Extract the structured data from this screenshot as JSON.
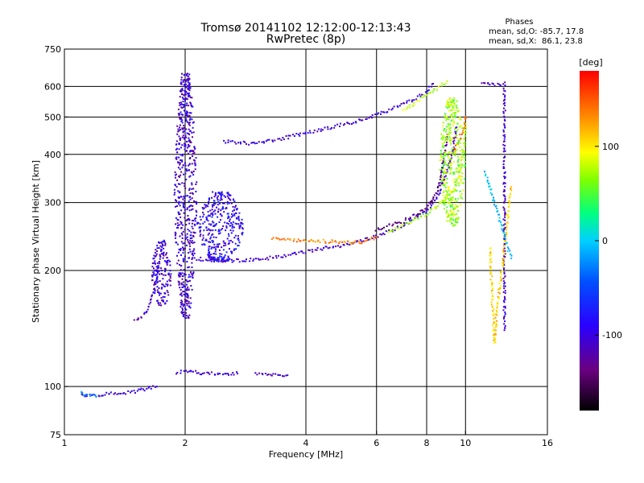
{
  "chart_data": {
    "type": "scatter",
    "title": "Tromsø 20141102 12:12:00-12:13:43",
    "subtitle": "RwPretec (8p)",
    "xlabel": "Frequency [MHz]",
    "ylabel": "Stationary phase Virtual Height [km]",
    "x_scale": "log",
    "y_scale": "log",
    "xlim": [
      1,
      16
    ],
    "ylim": [
      75,
      750
    ],
    "x_ticks": [
      1,
      2,
      4,
      6,
      8,
      10,
      16
    ],
    "y_ticks": [
      75,
      100,
      200,
      300,
      400,
      500,
      600,
      750
    ],
    "x_grid": [
      2,
      4,
      6,
      8,
      10
    ],
    "y_grid": [
      100,
      200,
      300,
      400,
      500,
      600
    ],
    "grid": true,
    "stats": {
      "heading": "Phases",
      "line1": "mean, sd,O: -85.7, 17.8",
      "line2": "mean, sd,X:  86.1, 23.8"
    },
    "colorbar": {
      "label": "[deg]",
      "range": [
        -180,
        180
      ],
      "ticks": [
        100,
        0,
        -100
      ]
    },
    "traces": [
      {
        "points": [
          [
            1.1,
            95
          ],
          [
            1.2,
            95
          ],
          [
            1.35,
            96
          ],
          [
            1.5,
            97
          ],
          [
            1.62,
            99
          ],
          [
            1.7,
            100
          ]
        ],
        "phase": -100
      },
      {
        "points": [
          [
            1.1,
            96
          ],
          [
            1.2,
            94
          ]
        ],
        "phase": -20
      },
      {
        "points": [
          [
            1.5,
            148
          ],
          [
            1.6,
            155
          ],
          [
            1.65,
            170
          ],
          [
            1.7,
            190
          ],
          [
            1.72,
            210
          ],
          [
            1.75,
            230
          ]
        ],
        "phase": -105
      },
      {
        "points": [
          [
            1.9,
            108
          ],
          [
            2.0,
            110
          ],
          [
            2.2,
            108
          ],
          [
            2.5,
            108
          ],
          [
            2.7,
            108
          ]
        ],
        "phase": -105
      },
      {
        "points": [
          [
            3.0,
            108
          ],
          [
            3.3,
            107
          ],
          [
            3.6,
            107
          ]
        ],
        "phase": -110
      },
      {
        "points": [
          [
            2.05,
            215
          ],
          [
            2.5,
            212
          ],
          [
            3.0,
            213
          ],
          [
            3.5,
            218
          ],
          [
            4.0,
            224
          ],
          [
            5.0,
            233
          ],
          [
            6.0,
            245
          ],
          [
            7.0,
            262
          ],
          [
            8.0,
            285
          ],
          [
            8.5,
            310
          ],
          [
            9.0,
            360
          ],
          [
            9.3,
            410
          ],
          [
            9.5,
            470
          ]
        ],
        "phase": -105
      },
      {
        "points": [
          [
            3.3,
            243
          ],
          [
            3.6,
            240
          ],
          [
            5.5,
            236
          ],
          [
            6.0,
            244
          ]
        ],
        "phase": 135
      },
      {
        "points": [
          [
            6.4,
            252
          ],
          [
            7.0,
            262
          ],
          [
            7.5,
            272
          ],
          [
            8.0,
            280
          ],
          [
            8.6,
            298
          ],
          [
            9.3,
            320
          ],
          [
            9.7,
            360
          ],
          [
            9.9,
            420
          ],
          [
            10.0,
            480
          ]
        ],
        "phase": 75
      },
      {
        "points": [
          [
            6.0,
            255
          ],
          [
            7.0,
            268
          ],
          [
            8.0,
            290
          ],
          [
            8.5,
            320
          ],
          [
            8.8,
            380
          ],
          [
            9.0,
            450
          ]
        ],
        "phase": -135
      },
      {
        "points": [
          [
            2.5,
            432
          ],
          [
            3.0,
            426
          ],
          [
            3.5,
            440
          ],
          [
            4.0,
            455
          ],
          [
            5.0,
            478
          ],
          [
            6.0,
            505
          ],
          [
            7.0,
            540
          ],
          [
            8.0,
            580
          ],
          [
            8.3,
            610
          ]
        ],
        "phase": -100
      },
      {
        "points": [
          [
            7.0,
            520
          ],
          [
            8.0,
            570
          ],
          [
            8.6,
            600
          ],
          [
            9.0,
            620
          ]
        ],
        "phase": 80
      },
      {
        "points": [
          [
            9.3,
            400
          ],
          [
            9.6,
            430
          ],
          [
            9.9,
            470
          ],
          [
            10.0,
            500
          ]
        ],
        "phase": 140
      },
      {
        "points": [
          [
            11.0,
            610
          ],
          [
            12.0,
            605
          ],
          [
            12.5,
            610
          ],
          [
            12.5,
            370
          ],
          [
            12.5,
            330
          ],
          [
            12.5,
            195
          ],
          [
            12.5,
            140
          ]
        ],
        "phase": -110
      },
      {
        "points": [
          [
            11.5,
            230
          ],
          [
            11.8,
            130
          ],
          [
            12.0,
            160
          ],
          [
            13.0,
            330
          ]
        ],
        "phase": 110
      },
      {
        "points": [
          [
            11.2,
            360
          ],
          [
            13.0,
            215
          ]
        ],
        "phase": -5
      }
    ],
    "clusters": [
      {
        "f": [
          1.88,
          2.14
        ],
        "h": [
          150,
          650
        ],
        "phase": -105
      },
      {
        "f": [
          1.65,
          1.85
        ],
        "h": [
          160,
          240
        ],
        "phase": -105
      },
      {
        "f": [
          2.14,
          2.8
        ],
        "h": [
          210,
          320
        ],
        "phase": -90
      },
      {
        "f": [
          8.6,
          10.0
        ],
        "h": [
          260,
          560
        ],
        "phase": 70
      }
    ]
  }
}
